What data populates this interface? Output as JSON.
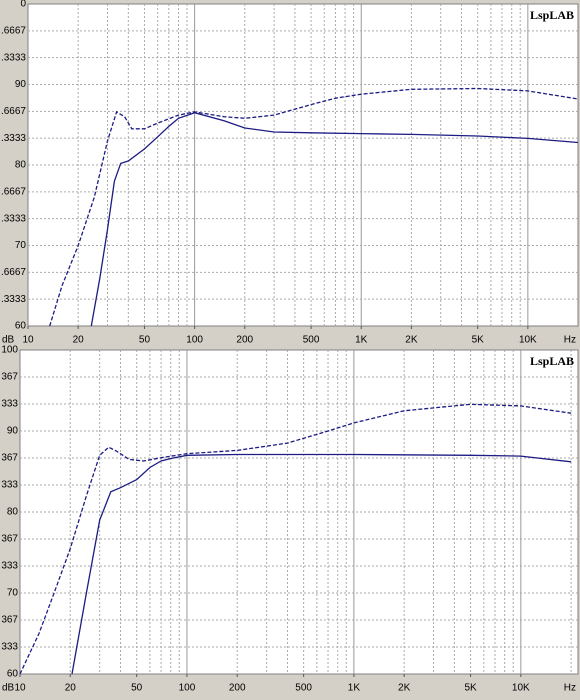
{
  "chart_data": [
    {
      "type": "line",
      "watermark": "LspLAB",
      "y_unit": "dB",
      "x_unit": "Hz",
      "log_x": true,
      "grid": true,
      "xlim": [
        10,
        20000
      ],
      "ylim": [
        60,
        100
      ],
      "xticks": [
        10,
        20,
        50,
        100,
        200,
        500,
        {
          "value": 1000,
          "label": "1K"
        },
        {
          "value": 2000,
          "label": "2K"
        },
        {
          "value": 5000,
          "label": "5K"
        },
        {
          "value": 10000,
          "label": "10K"
        }
      ],
      "yticks": [
        60,
        {
          "value": 63.3333,
          "label": ".3333"
        },
        {
          "value": 66.6667,
          "label": ".6667"
        },
        70,
        {
          "value": 73.3333,
          "label": ".3333"
        },
        {
          "value": 76.6667,
          "label": ".6667"
        },
        80,
        {
          "value": 83.3333,
          "label": ".3333"
        },
        {
          "value": 86.6667,
          "label": ".6667"
        },
        90,
        {
          "value": 93.3333,
          "label": ".3333"
        },
        {
          "value": 96.6667,
          "label": ".6667"
        },
        {
          "value": 100,
          "label": "0"
        }
      ],
      "series": [
        {
          "color": "#1c1c84",
          "style": "dashed",
          "x": [
            13.5,
            16,
            20,
            25,
            30,
            34,
            38,
            42,
            50,
            60,
            80,
            100,
            150,
            200,
            300,
            500,
            700,
            1000,
            2000,
            5000,
            10000,
            20000
          ],
          "values": [
            60,
            65,
            70,
            76,
            83,
            86.6,
            86,
            84.5,
            84.5,
            85.2,
            86.2,
            86.6,
            86,
            85.8,
            86.2,
            87.5,
            88.3,
            88.8,
            89.4,
            89.5,
            89.2,
            88.2
          ]
        },
        {
          "color": "#1c1c84",
          "style": "solid",
          "x": [
            24,
            27,
            30,
            33,
            36,
            40,
            50,
            60,
            70,
            80,
            100,
            150,
            200,
            300,
            500,
            1000,
            2000,
            5000,
            10000,
            20000
          ],
          "values": [
            60,
            66,
            72,
            78,
            80.2,
            80.5,
            82,
            83.5,
            84.8,
            85.8,
            86.5,
            85.5,
            84.6,
            84.1,
            84,
            83.9,
            83.8,
            83.6,
            83.3,
            82.8
          ]
        }
      ]
    },
    {
      "type": "line",
      "watermark": "LspLAB",
      "y_unit": "dB",
      "x_unit": "Hz",
      "log_x": true,
      "grid": true,
      "xlim": [
        10,
        22000
      ],
      "ylim": [
        60,
        100
      ],
      "xticks": [
        10,
        20,
        50,
        100,
        200,
        500,
        {
          "value": 1000,
          "label": "1K"
        },
        {
          "value": 2000,
          "label": "2K"
        },
        {
          "value": 5000,
          "label": "5K"
        },
        {
          "value": 10000,
          "label": "10K"
        }
      ],
      "yticks": [
        60,
        {
          "value": 63.3333,
          "label": "333"
        },
        {
          "value": 66.6667,
          "label": "367"
        },
        70,
        {
          "value": 73.3333,
          "label": "333"
        },
        {
          "value": 76.6667,
          "label": "367"
        },
        80,
        {
          "value": 83.3333,
          "label": "333"
        },
        {
          "value": 86.6667,
          "label": "367"
        },
        90,
        {
          "value": 93.3333,
          "label": "333"
        },
        {
          "value": 96.6667,
          "label": "367"
        },
        100
      ],
      "series": [
        {
          "color": "#1c1c84",
          "style": "dashed",
          "x": [
            10,
            13,
            16,
            20,
            25,
            30,
            34,
            38,
            45,
            55,
            70,
            100,
            200,
            400,
            700,
            1000,
            2000,
            5000,
            10000,
            20000
          ],
          "values": [
            60,
            65,
            70,
            75.5,
            82,
            87,
            88,
            87.5,
            86.5,
            86.3,
            86.7,
            87.2,
            87.6,
            88.5,
            90,
            91,
            92.5,
            93.3,
            93.1,
            92.2
          ]
        },
        {
          "color": "#1c1c84",
          "style": "solid",
          "x": [
            20.5,
            25,
            30,
            35,
            40,
            50,
            60,
            70,
            80,
            100,
            200,
            1000,
            5000,
            10000,
            20000
          ],
          "values": [
            60,
            70,
            79,
            82.5,
            83,
            84,
            85.5,
            86.3,
            86.6,
            87,
            87.1,
            87.1,
            87,
            86.9,
            86.2
          ]
        }
      ]
    }
  ]
}
